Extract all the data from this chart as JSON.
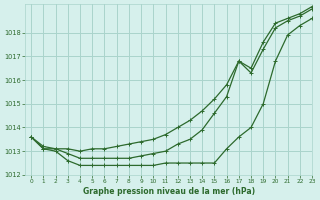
{
  "title": "Graphe pression niveau de la mer (hPa)",
  "background_color": "#d6f0ec",
  "grid_color": "#aad4cc",
  "line_color": "#2d6a2d",
  "xlim": [
    -0.5,
    23
  ],
  "ylim": [
    1012,
    1019.2
  ],
  "yticks": [
    1012,
    1013,
    1014,
    1015,
    1016,
    1017,
    1018
  ],
  "xticks": [
    0,
    1,
    2,
    3,
    4,
    5,
    6,
    7,
    8,
    9,
    10,
    11,
    12,
    13,
    14,
    15,
    16,
    17,
    18,
    19,
    20,
    21,
    22,
    23
  ],
  "hours": [
    0,
    1,
    2,
    3,
    4,
    5,
    6,
    7,
    8,
    9,
    10,
    11,
    12,
    13,
    14,
    15,
    16,
    17,
    18,
    19,
    20,
    21,
    22,
    23
  ],
  "series_high": [
    1013.6,
    1013.2,
    1013.1,
    1013.1,
    1013.0,
    1013.1,
    1013.1,
    1013.2,
    1013.3,
    1013.4,
    1013.5,
    1013.7,
    1014.0,
    1014.3,
    1014.7,
    1015.2,
    1015.8,
    1016.8,
    1016.5,
    1017.6,
    1018.4,
    1018.6,
    1018.8,
    1019.1
  ],
  "series_mid": [
    1013.6,
    1013.1,
    1013.1,
    1012.9,
    1012.7,
    1012.7,
    1012.7,
    1012.7,
    1012.7,
    1012.8,
    1012.9,
    1013.0,
    1013.3,
    1013.5,
    1013.9,
    1014.6,
    1015.3,
    1016.8,
    1016.3,
    1017.3,
    1018.2,
    1018.5,
    1018.7,
    1019.0
  ],
  "series_low": [
    1013.6,
    1013.1,
    1013.0,
    1012.6,
    1012.4,
    1012.4,
    1012.4,
    1012.4,
    1012.4,
    1012.4,
    1012.4,
    1012.5,
    1012.5,
    1012.5,
    1012.5,
    1012.5,
    1013.1,
    1013.6,
    1014.0,
    1015.0,
    1016.8,
    1017.9,
    1018.3,
    1018.6
  ]
}
